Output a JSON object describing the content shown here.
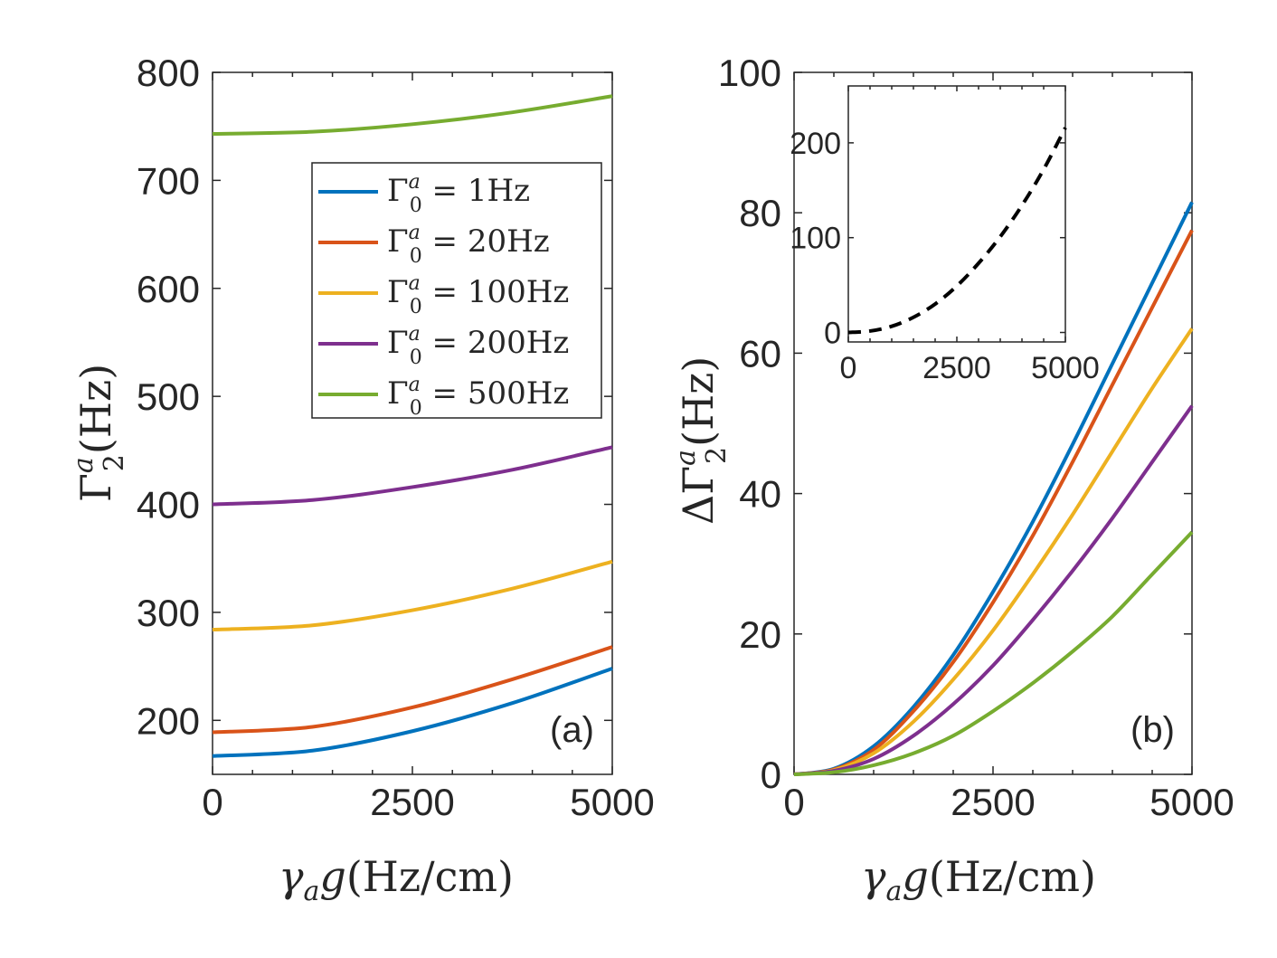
{
  "chart_data": [
    {
      "type": "line",
      "panel_label": "(a)",
      "xlabel": "γ_a g(Hz/cm)",
      "ylabel": "Γ_2^a(Hz)",
      "xlim": [
        0,
        5000
      ],
      "ylim": [
        150,
        800
      ],
      "xticks": [
        0,
        2500,
        5000
      ],
      "yticks": [
        200,
        300,
        400,
        500,
        600,
        700,
        800
      ],
      "legend": {
        "position": "top-right"
      },
      "series": [
        {
          "name": "Γ_0^a = 1Hz",
          "color": "#0072BD",
          "x": [
            0,
            1250,
            2500,
            3750,
            5000
          ],
          "values": [
            167,
            172,
            190,
            216,
            248
          ]
        },
        {
          "name": "Γ_0^a = 20Hz",
          "color": "#D95319",
          "x": [
            0,
            1250,
            2500,
            3750,
            5000
          ],
          "values": [
            189,
            194,
            212,
            238,
            268
          ]
        },
        {
          "name": "Γ_0^a = 100Hz",
          "color": "#EDB120",
          "x": [
            0,
            1250,
            2500,
            3750,
            5000
          ],
          "values": [
            284,
            288,
            302,
            322,
            347
          ]
        },
        {
          "name": "Γ_0^a = 200Hz",
          "color": "#7E2F8E",
          "x": [
            0,
            1250,
            2500,
            3750,
            5000
          ],
          "values": [
            400,
            404,
            416,
            432,
            453
          ]
        },
        {
          "name": "Γ_0^a = 500Hz",
          "color": "#77AC30",
          "x": [
            0,
            1250,
            2500,
            3750,
            5000
          ],
          "values": [
            743,
            745,
            752,
            763,
            778
          ]
        }
      ]
    },
    {
      "type": "line",
      "panel_label": "(b)",
      "xlabel": "γ_a g(Hz/cm)",
      "ylabel": "ΔΓ_2^a(Hz)",
      "xlim": [
        0,
        5000
      ],
      "ylim": [
        0,
        100
      ],
      "xticks": [
        0,
        2500,
        5000
      ],
      "yticks": [
        0,
        20,
        40,
        60,
        80,
        100
      ],
      "series": [
        {
          "name": "Γ_0^a = 1Hz",
          "color": "#0072BD",
          "x": [
            0,
            500,
            1000,
            1500,
            2000,
            2500,
            3000,
            3500,
            4000,
            4500,
            5000
          ],
          "values": [
            0,
            0.8,
            4,
            9.6,
            17,
            26,
            36,
            47,
            58.5,
            70,
            81.5
          ]
        },
        {
          "name": "Γ_0^a = 20Hz",
          "color": "#D95319",
          "x": [
            0,
            500,
            1000,
            1500,
            2000,
            2500,
            3000,
            3500,
            4000,
            4500,
            5000
          ],
          "values": [
            0,
            0.7,
            3.5,
            9,
            16,
            24.5,
            34,
            44.5,
            55.5,
            66.5,
            77.5
          ]
        },
        {
          "name": "Γ_0^a = 100Hz",
          "color": "#EDB120",
          "x": [
            0,
            500,
            1000,
            1500,
            2000,
            2500,
            3000,
            3500,
            4000,
            4500,
            5000
          ],
          "values": [
            0,
            0.6,
            3,
            7.5,
            13.5,
            20.5,
            28.5,
            37,
            46,
            55,
            63.5
          ]
        },
        {
          "name": "Γ_0^a = 200Hz",
          "color": "#7E2F8E",
          "x": [
            0,
            500,
            1000,
            1500,
            2000,
            2500,
            3000,
            3500,
            4000,
            4500,
            5000
          ],
          "values": [
            0,
            0.5,
            2.2,
            5.5,
            10,
            15.5,
            22,
            29,
            36.5,
            44.5,
            52.5
          ]
        },
        {
          "name": "Γ_0^a = 500Hz",
          "color": "#77AC30",
          "x": [
            0,
            500,
            1000,
            1500,
            2000,
            2500,
            3000,
            3500,
            4000,
            4500,
            5000
          ],
          "values": [
            0,
            0.3,
            1.3,
            3,
            5.5,
            9,
            13,
            17.5,
            22.5,
            28.5,
            34.5
          ]
        }
      ],
      "inset": {
        "type": "line",
        "xlim": [
          0,
          5000
        ],
        "ylim": [
          -10,
          260
        ],
        "xticks": [
          0,
          2500,
          5000
        ],
        "yticks": [
          0,
          100,
          200
        ],
        "series": [
          {
            "name": "inset",
            "color": "#000000",
            "linestyle": "dashed",
            "x": [
              0,
              500,
              1000,
              1500,
              2000,
              2500,
              3000,
              3500,
              4000,
              4500,
              5000
            ],
            "values": [
              0,
              1.5,
              6.5,
              16,
              30,
              49,
              73,
              101,
              134,
              172,
              216
            ]
          }
        ]
      }
    }
  ],
  "legend_entries": [
    {
      "sym": "Γ",
      "sup": "a",
      "sub": "0",
      "rest": " = 1Hz"
    },
    {
      "sym": "Γ",
      "sup": "a",
      "sub": "0",
      "rest": " = 20Hz"
    },
    {
      "sym": "Γ",
      "sup": "a",
      "sub": "0",
      "rest": " = 100Hz"
    },
    {
      "sym": "Γ",
      "sup": "a",
      "sub": "0",
      "rest": " = 200Hz"
    },
    {
      "sym": "Γ",
      "sup": "a",
      "sub": "0",
      "rest": " = 500Hz"
    }
  ],
  "axis_text": {
    "xlabel_gamma": "γ",
    "xlabel_sub": "a",
    "xlabel_rest": "g(Hz/cm)",
    "ylabel_a_sym": "Γ",
    "ylabel_a_sup": "a",
    "ylabel_a_sub": "2",
    "ylabel_a_rest": "(Hz)",
    "ylabel_b_sym": "ΔΓ",
    "ylabel_b_sup": "a",
    "ylabel_b_sub": "2",
    "ylabel_b_rest": "(Hz)"
  }
}
